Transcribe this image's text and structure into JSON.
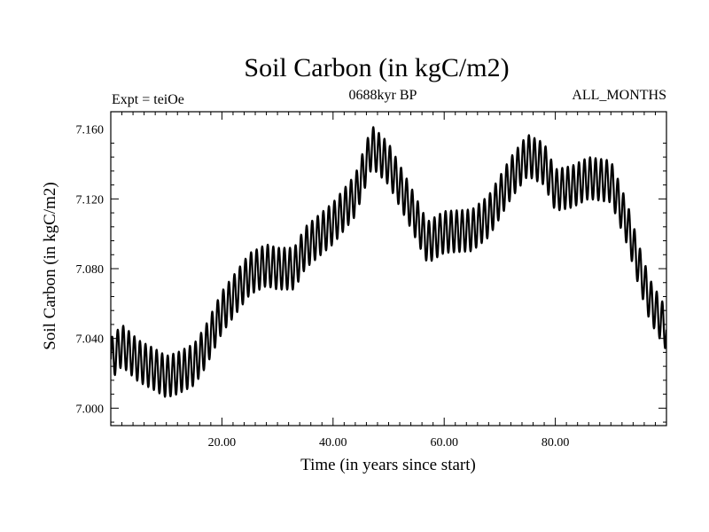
{
  "chart_data": {
    "type": "line",
    "title": "Soil Carbon (in kgC/m2)",
    "subtitle_left": "Expt = teiOe",
    "subtitle_center": "0688kyr BP",
    "subtitle_right": "ALL_MONTHS",
    "xlabel": "Time (in years since start)",
    "ylabel": "Soil Carbon (in kgC/m2)",
    "xlim": [
      0,
      100
    ],
    "ylim": [
      6.99,
      7.17
    ],
    "xticks": [
      20,
      40,
      60,
      80
    ],
    "xtick_labels": [
      "20.00",
      "40.00",
      "60.00",
      "80.00"
    ],
    "yticks": [
      7.0,
      7.04,
      7.08,
      7.12,
      7.16
    ],
    "ytick_labels": [
      "7.000",
      "7.040",
      "7.080",
      "7.120",
      "7.160"
    ],
    "cycle_period_years": 1,
    "cycle_amplitude": 0.012,
    "series": [
      {
        "name": "Soil Carbon",
        "color": "#000000",
        "trend_x": [
          0,
          2,
          5,
          8,
          10,
          12,
          15,
          17,
          20,
          25,
          28,
          30,
          33,
          35,
          40,
          44,
          47,
          50,
          54,
          57,
          60,
          65,
          68,
          72,
          75,
          78,
          80,
          83,
          86,
          90,
          93,
          95,
          97,
          100
        ],
        "trend_y": [
          7.028,
          7.036,
          7.027,
          7.022,
          7.018,
          7.02,
          7.025,
          7.035,
          7.055,
          7.077,
          7.082,
          7.08,
          7.08,
          7.092,
          7.106,
          7.122,
          7.15,
          7.14,
          7.115,
          7.095,
          7.101,
          7.102,
          7.11,
          7.132,
          7.145,
          7.14,
          7.125,
          7.127,
          7.132,
          7.13,
          7.105,
          7.082,
          7.062,
          7.045
        ]
      }
    ]
  }
}
